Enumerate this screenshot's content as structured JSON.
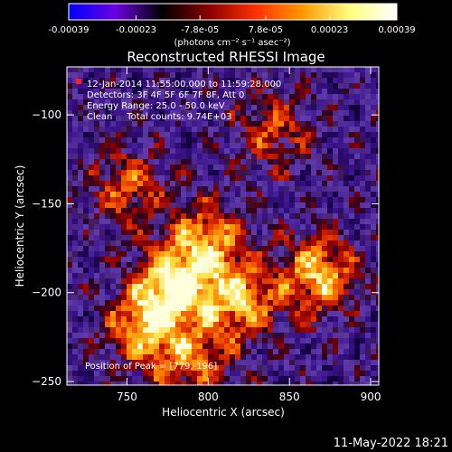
{
  "colorbar": {
    "tick_labels": [
      "-0.00039",
      "-0.00023",
      "-7.8e-05",
      "7.8e-05",
      "0.00023",
      "0.00039"
    ],
    "tick_values": [
      -0.00039,
      -0.00023,
      -7.8e-05,
      7.8e-05,
      0.00023,
      0.00039
    ],
    "range": [
      -0.00039,
      0.00039
    ],
    "units": "(photons cm⁻² s⁻¹ asec⁻²)",
    "colors": [
      "#0000ff",
      "#6b00e0",
      "#000000",
      "#8b0000",
      "#ff3000",
      "#ff9a00",
      "#ffff80",
      "#ffffff"
    ]
  },
  "chart_data": {
    "type": "heatmap",
    "title": "Reconstructed RHESSI Image",
    "xlabel": "Heliocentric X (arcsec)",
    "ylabel": "Heliocentric Y (arcsec)",
    "xlim": [
      713,
      905
    ],
    "ylim": [
      -252,
      -73
    ],
    "x_ticks": [
      750,
      800,
      850,
      900
    ],
    "x_tick_labels": [
      "750",
      "800",
      "850",
      "900"
    ],
    "y_ticks": [
      -100,
      -150,
      -200,
      -250
    ],
    "y_tick_labels": [
      "−100",
      "−150",
      "−200",
      "−250"
    ],
    "info_lines": [
      "12-Jan-2014 11:55:00.000 to 11:59:28.000",
      "Detectors: 3F 4F 5F 6F 7F 8F, Att 0",
      "Energy Range: 25.0 - 50.0 keV",
      "Clean     Total counts: 9.74E+03"
    ],
    "peak_label": "Position of Peak = [779,-196]",
    "peak_position": [
      779,
      -196
    ],
    "bright_regions": [
      {
        "x": 779,
        "y": -196,
        "v": 1.0
      },
      {
        "x": 800,
        "y": -170,
        "v": 0.7
      },
      {
        "x": 760,
        "y": -220,
        "v": 0.75
      },
      {
        "x": 820,
        "y": -205,
        "v": 0.8
      },
      {
        "x": 868,
        "y": -190,
        "v": 0.85
      },
      {
        "x": 750,
        "y": -140,
        "v": 0.55
      },
      {
        "x": 840,
        "y": -110,
        "v": 0.5
      },
      {
        "x": 790,
        "y": -240,
        "v": 0.6
      }
    ]
  },
  "footer_timestamp": "11-May-2022 18:21"
}
